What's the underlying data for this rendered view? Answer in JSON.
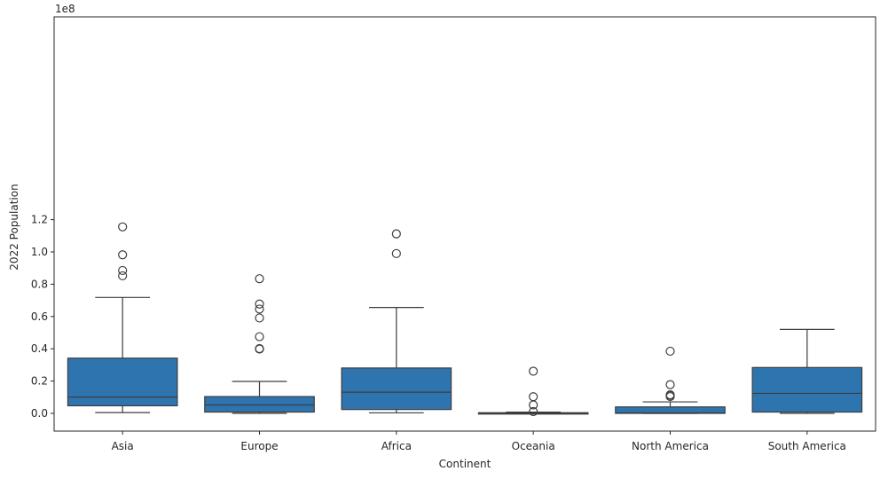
{
  "chart_data": {
    "type": "box",
    "xlabel": "Continent",
    "ylabel": "2022 Population",
    "y_offset_label": "1e8",
    "y_multiplier": 100000000,
    "ylim": [
      -0.055,
      1.22
    ],
    "yticks": [
      0.0,
      0.2,
      0.4,
      0.6,
      0.8,
      1.0,
      1.2
    ],
    "ytick_labels": [
      "0.0",
      "0.2",
      "0.4",
      "0.6",
      "0.8",
      "1.0",
      "1.2"
    ],
    "grid": false,
    "box_color": "#2e75b0",
    "line_color": "#3d3d3d",
    "categories": [
      "Asia",
      "Europe",
      "Africa",
      "Oceania",
      "North America",
      "South America"
    ],
    "boxes": [
      {
        "category": "Asia",
        "whisker_low": 0.005,
        "q1": 0.047,
        "median": 0.101,
        "q3": 0.342,
        "whisker_high": 0.718,
        "outliers": [
          1.155,
          0.982,
          0.885,
          0.852
        ]
      },
      {
        "category": "Europe",
        "whisker_low": 0.0,
        "q1": 0.008,
        "median": 0.052,
        "q3": 0.104,
        "whisker_high": 0.198,
        "outliers": [
          0.834,
          0.677,
          0.646,
          0.591,
          0.475,
          0.401,
          0.398
        ]
      },
      {
        "category": "Africa",
        "whisker_low": 0.003,
        "q1": 0.024,
        "median": 0.131,
        "q3": 0.281,
        "whisker_high": 0.656,
        "outliers": [
          1.112,
          0.99
        ]
      },
      {
        "category": "Oceania",
        "whisker_low": 0.0,
        "q1": 0.0,
        "median": 0.0,
        "q3": 0.004,
        "whisker_high": 0.008,
        "outliers": [
          0.261,
          0.103,
          0.052,
          0.011
        ]
      },
      {
        "category": "North America",
        "whisker_low": 0.0,
        "q1": 0.0,
        "median": 0.003,
        "q3": 0.04,
        "whisker_high": 0.071,
        "outliers": [
          0.385,
          0.178,
          0.115,
          0.111,
          0.104
        ]
      },
      {
        "category": "South America",
        "whisker_low": 0.0,
        "q1": 0.008,
        "median": 0.124,
        "q3": 0.284,
        "whisker_high": 0.52,
        "outliers": []
      }
    ]
  }
}
